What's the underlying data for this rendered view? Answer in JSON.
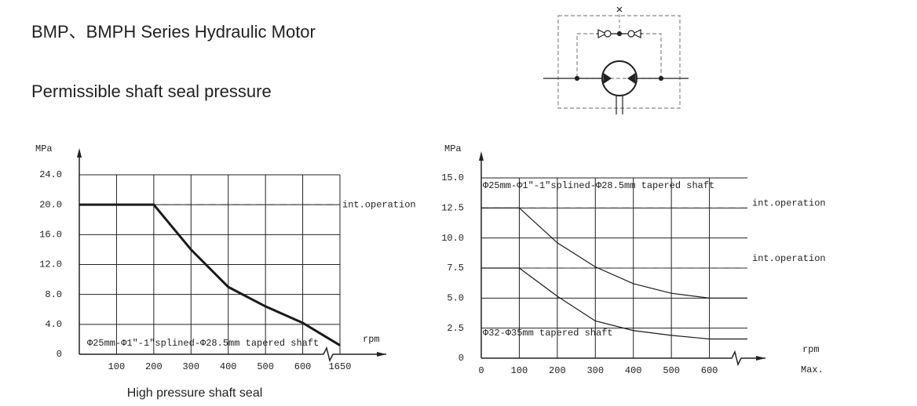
{
  "title": "BMP、BMPH Series Hydraulic Motor",
  "subtitle": "Permissible shaft seal pressure",
  "chart_data": [
    {
      "type": "line",
      "ylabel": "MPa",
      "xlabel": "rpm",
      "caption": "High pressure shaft seal",
      "x": [
        0,
        200,
        300,
        400,
        500,
        600,
        1650
      ],
      "values": [
        20,
        20,
        14,
        9,
        6.4,
        4.2,
        1.2
      ],
      "color": "#1a1a1a",
      "xlim": [
        0,
        1650
      ],
      "xbreak": 600,
      "xticks": [
        100,
        200,
        300,
        400,
        500,
        600,
        1650
      ],
      "ylim": [
        0,
        24
      ],
      "yticks": [
        0,
        {
          "value": 4,
          "label": "4.0"
        },
        {
          "value": 8,
          "label": "8.0"
        },
        {
          "value": 12,
          "label": "12.0"
        },
        {
          "value": 16,
          "label": "16.0"
        },
        {
          "value": 20,
          "label": "20.0"
        },
        {
          "value": 24,
          "label": "24.0"
        }
      ],
      "grid": true,
      "reference_lines": [
        {
          "value": 20,
          "label": "int.operation"
        }
      ],
      "annotations": [
        "Φ25mm-Φ1\"-1\"splined-Φ28.5mm tapered shaft"
      ]
    },
    {
      "type": "line",
      "ylabel": "MPa",
      "xlabel": "rpm",
      "xmax_label": "Max.",
      "x": [
        0,
        100,
        200,
        300,
        400,
        500,
        600,
        700
      ],
      "series": [
        {
          "color": "#1a1a1a",
          "values": [
            12.5,
            12.5,
            9.6,
            7.6,
            6.2,
            5.4,
            5.0,
            5.0
          ]
        },
        {
          "color": "#1a1a1a",
          "values": [
            7.5,
            7.5,
            5.15,
            3.1,
            2.3,
            1.9,
            1.6,
            1.6
          ]
        }
      ],
      "xlim": [
        0,
        700
      ],
      "xticks": [
        0,
        100,
        200,
        300,
        400,
        500,
        600
      ],
      "ylim": [
        0,
        15
      ],
      "yticks": [
        0,
        2.5,
        {
          "value": 5,
          "label": "5.0"
        },
        7.5,
        {
          "value": 10,
          "label": "10.0"
        },
        12.5,
        {
          "value": 15,
          "label": "15.0"
        }
      ],
      "grid": true,
      "reference_lines": [
        {
          "value": 12.5,
          "label": "int.operation"
        },
        {
          "value": 7.5,
          "label": "int.operation"
        }
      ],
      "annotations": [
        "Φ25mm-Φ1\"-1\"splined-Φ28.5mm tapered shaft",
        "Φ32-Φ35mm tapered shaft"
      ]
    }
  ]
}
